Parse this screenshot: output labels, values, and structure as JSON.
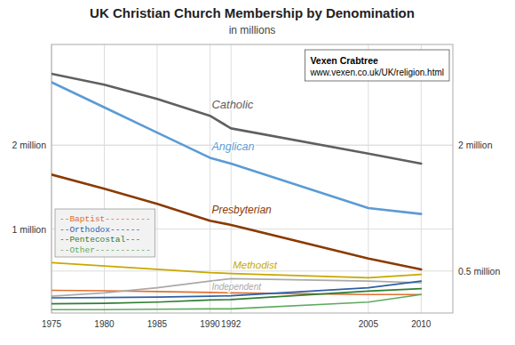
{
  "chart_data": {
    "type": "line",
    "title": "UK Christian Church Membership by Denomination",
    "subtitle": "in millions",
    "x": [
      1975,
      1980,
      1985,
      1990,
      1992,
      2005,
      2010
    ],
    "xlim": [
      1975,
      2013
    ],
    "xticks": [
      1975,
      1980,
      1985,
      1990,
      1992,
      2005,
      2010
    ],
    "ylim": [
      0,
      3.2
    ],
    "yticks": [
      {
        "value": 1.0,
        "label": "1 million"
      },
      {
        "value": 2.0,
        "label": "2 million"
      }
    ],
    "y2lim": [
      0,
      3.2
    ],
    "y2ticks": [
      {
        "value": 0.5,
        "label": "0.5 million"
      },
      {
        "value": 2.0,
        "label": "2 million"
      }
    ],
    "grid": true,
    "legend": "lower left",
    "annotations": [
      "Vexen Crabtree",
      "www.vexen.co.uk/UK/religion.html"
    ],
    "series": [
      {
        "name": "Catholic",
        "color": "#606060",
        "values": [
          2.85,
          2.72,
          2.55,
          2.35,
          2.2,
          1.9,
          1.78
        ]
      },
      {
        "name": "Anglican",
        "color": "#5b9bd5",
        "values": [
          2.75,
          2.45,
          2.15,
          1.85,
          1.78,
          1.25,
          1.18
        ]
      },
      {
        "name": "Presbyterian",
        "color": "#8b3a00",
        "values": [
          1.65,
          1.48,
          1.3,
          1.1,
          1.05,
          0.65,
          0.52
        ]
      },
      {
        "name": "Methodist",
        "color": "#c8a800",
        "values": [
          0.6,
          0.56,
          0.52,
          0.48,
          0.47,
          0.42,
          0.46
        ]
      },
      {
        "name": "--Baptist---------",
        "color": "#e07030",
        "values": [
          0.27,
          0.265,
          0.255,
          0.245,
          0.24,
          0.22,
          0.22
        ]
      },
      {
        "name": "Independent",
        "color": "#aaaaaa",
        "values": [
          0.2,
          0.24,
          0.3,
          0.38,
          0.41,
          0.38,
          0.36
        ]
      },
      {
        "name": "--Orthodox------",
        "color": "#2e5fa3",
        "values": [
          0.18,
          0.185,
          0.19,
          0.2,
          0.205,
          0.3,
          0.38
        ]
      },
      {
        "name": "--Pentecostal---",
        "color": "#2e7d32",
        "values": [
          0.11,
          0.115,
          0.13,
          0.155,
          0.16,
          0.26,
          0.29
        ]
      },
      {
        "name": "--Other-----------",
        "color": "#5faa5f",
        "values": [
          0.04,
          0.04,
          0.045,
          0.05,
          0.05,
          0.13,
          0.22
        ]
      }
    ]
  }
}
